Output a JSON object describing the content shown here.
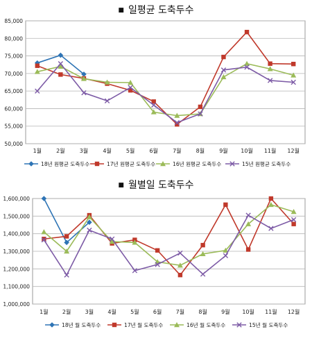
{
  "page": {
    "bullet": "■",
    "chart1_title": "일평균 도축두수",
    "chart2_title": "월별일 도축두수"
  },
  "chart_data": [
    {
      "type": "line",
      "title": "일평균 도축두수",
      "categories": [
        "1월",
        "2월",
        "3월",
        "4월",
        "5월",
        "6월",
        "7월",
        "8월",
        "9월",
        "10월",
        "11월",
        "12월"
      ],
      "ylim": [
        50000,
        85000
      ],
      "yticks": [
        "50,000",
        "55,000",
        "60,000",
        "65,000",
        "70,000",
        "75,000",
        "80,000",
        "85,000"
      ],
      "ytick_values": [
        50000,
        55000,
        60000,
        65000,
        70000,
        75000,
        80000,
        85000
      ],
      "grid": true,
      "legend": "bottom",
      "series": [
        {
          "name": "18년 원평균 도축두수",
          "color": "#2e74b5",
          "marker": "diamond",
          "values": [
            73000,
            75200,
            69800,
            null,
            null,
            null,
            null,
            null,
            null,
            null,
            null,
            null
          ]
        },
        {
          "name": "17년 원평균 도축두수",
          "color": "#c0392b",
          "marker": "square",
          "values": [
            72200,
            69700,
            68600,
            67100,
            65200,
            62000,
            55500,
            60500,
            74700,
            81800,
            72800,
            72700
          ]
        },
        {
          "name": "16년 원평균 도축두수",
          "color": "#9bbb59",
          "marker": "triangle",
          "values": [
            70500,
            72000,
            68500,
            67500,
            67400,
            59000,
            58000,
            58500,
            69000,
            72800,
            71300,
            69500
          ]
        },
        {
          "name": "15년 원평균 도축두수",
          "color": "#7d5ba6",
          "marker": "x",
          "values": [
            65000,
            72800,
            64500,
            62200,
            66000,
            61000,
            56000,
            58500,
            71000,
            71800,
            68000,
            67500
          ]
        }
      ]
    },
    {
      "type": "line",
      "title": "월별일 도축두수",
      "categories": [
        "1월",
        "2월",
        "3월",
        "4월",
        "5월",
        "6월",
        "7월",
        "8월",
        "9월",
        "10월",
        "11월",
        "12월"
      ],
      "ylim": [
        1000000,
        1600000
      ],
      "yticks": [
        "1,000,000",
        "1,100,000",
        "1,200,000",
        "1,300,000",
        "1,400,000",
        "1,500,000",
        "1,600,000"
      ],
      "ytick_values": [
        1000000,
        1100000,
        1200000,
        1300000,
        1400000,
        1500000,
        1600000
      ],
      "grid": true,
      "legend": "bottom",
      "series": [
        {
          "name": "18년 월 도축두수",
          "color": "#2e74b5",
          "marker": "diamond",
          "values": [
            1600000,
            1350000,
            1465000,
            null,
            null,
            null,
            null,
            null,
            null,
            null,
            null,
            null
          ]
        },
        {
          "name": "17년 월 도축두수",
          "color": "#c0392b",
          "marker": "square",
          "values": [
            1370000,
            1385000,
            1505000,
            1345000,
            1365000,
            1305000,
            1165000,
            1335000,
            1565000,
            1310000,
            1600000,
            1455000
          ]
        },
        {
          "name": "16년 월 도축두수",
          "color": "#9bbb59",
          "marker": "triangle",
          "values": [
            1410000,
            1300000,
            1495000,
            1355000,
            1350000,
            1240000,
            1220000,
            1285000,
            1305000,
            1455000,
            1565000,
            1525000
          ]
        },
        {
          "name": "15년 월 도축두수",
          "color": "#7d5ba6",
          "marker": "x",
          "values": [
            1365000,
            1165000,
            1420000,
            1370000,
            1190000,
            1225000,
            1290000,
            1170000,
            1275000,
            1505000,
            1430000,
            1480000
          ]
        }
      ]
    }
  ]
}
